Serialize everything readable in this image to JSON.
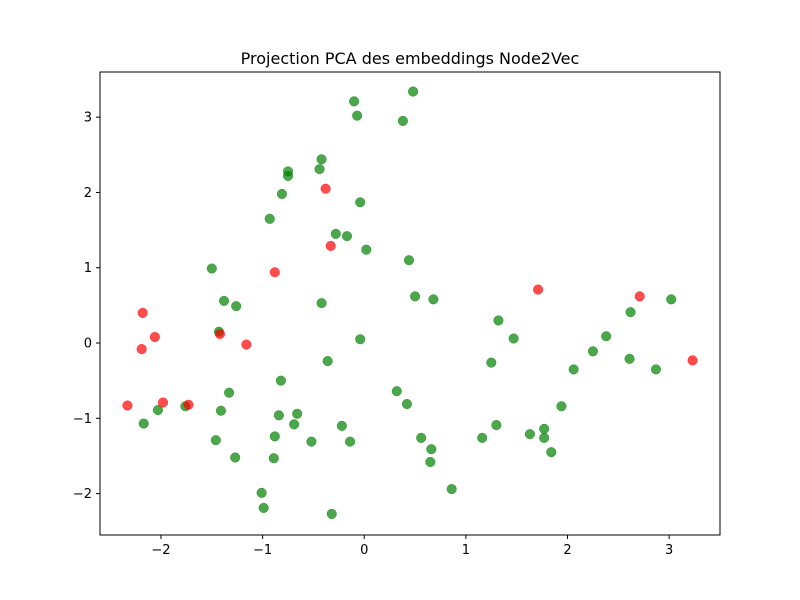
{
  "chart_data": {
    "type": "scatter",
    "title": "Projection PCA des embeddings Node2Vec",
    "xlabel": "",
    "ylabel": "",
    "xlim": [
      -2.6,
      3.5
    ],
    "ylim": [
      -2.55,
      3.6
    ],
    "grid": false,
    "x_ticks": [
      -2,
      -1,
      0,
      1,
      2,
      3
    ],
    "x_tick_labels": [
      "−2",
      "−1",
      "0",
      "1",
      "2",
      "3"
    ],
    "y_ticks": [
      -2,
      -1,
      0,
      1,
      2,
      3
    ],
    "y_tick_labels": [
      "−2",
      "−1",
      "0",
      "1",
      "2",
      "3"
    ],
    "colors": {
      "green": "#008000",
      "red": "#ff0000",
      "axes": "#000000"
    },
    "series": [
      {
        "color": "green",
        "points": [
          [
            0.48,
            3.34
          ],
          [
            -0.1,
            3.21
          ],
          [
            -0.07,
            3.02
          ],
          [
            0.38,
            2.95
          ],
          [
            -0.42,
            2.44
          ],
          [
            -0.44,
            2.31
          ],
          [
            -0.75,
            2.28
          ],
          [
            -0.75,
            2.22
          ],
          [
            -0.81,
            1.98
          ],
          [
            -0.04,
            1.87
          ],
          [
            -0.93,
            1.65
          ],
          [
            -0.28,
            1.45
          ],
          [
            -0.17,
            1.42
          ],
          [
            0.02,
            1.24
          ],
          [
            0.44,
            1.1
          ],
          [
            -1.5,
            0.99
          ],
          [
            0.5,
            0.62
          ],
          [
            0.68,
            0.58
          ],
          [
            -1.38,
            0.56
          ],
          [
            -0.42,
            0.53
          ],
          [
            -1.26,
            0.49
          ],
          [
            -1.43,
            0.15
          ],
          [
            -0.04,
            0.05
          ],
          [
            -0.36,
            -0.24
          ],
          [
            1.32,
            0.3
          ],
          [
            1.47,
            0.06
          ],
          [
            1.25,
            -0.26
          ],
          [
            2.38,
            0.09
          ],
          [
            2.25,
            -0.11
          ],
          [
            2.06,
            -0.35
          ],
          [
            2.62,
            0.41
          ],
          [
            2.61,
            -0.21
          ],
          [
            2.87,
            -0.35
          ],
          [
            3.02,
            0.58
          ],
          [
            -0.82,
            -0.5
          ],
          [
            -1.33,
            -0.66
          ],
          [
            0.32,
            -0.64
          ],
          [
            0.42,
            -0.81
          ],
          [
            1.94,
            -0.84
          ],
          [
            -1.41,
            -0.9
          ],
          [
            -0.84,
            -0.96
          ],
          [
            -0.66,
            -0.94
          ],
          [
            -0.69,
            -1.08
          ],
          [
            -0.22,
            -1.1
          ],
          [
            1.3,
            -1.09
          ],
          [
            -2.03,
            -0.89
          ],
          [
            -1.76,
            -0.84
          ],
          [
            -2.17,
            -1.07
          ],
          [
            1.77,
            -1.14
          ],
          [
            -1.46,
            -1.29
          ],
          [
            -0.88,
            -1.24
          ],
          [
            -0.52,
            -1.31
          ],
          [
            -0.14,
            -1.31
          ],
          [
            0.56,
            -1.26
          ],
          [
            1.16,
            -1.26
          ],
          [
            1.63,
            -1.21
          ],
          [
            1.77,
            -1.26
          ],
          [
            0.66,
            -1.41
          ],
          [
            1.84,
            -1.45
          ],
          [
            -1.27,
            -1.52
          ],
          [
            -0.89,
            -1.53
          ],
          [
            0.65,
            -1.58
          ],
          [
            0.86,
            -1.94
          ],
          [
            -1.01,
            -1.99
          ],
          [
            -0.99,
            -2.19
          ],
          [
            -0.32,
            -2.27
          ]
        ]
      },
      {
        "color": "red",
        "points": [
          [
            -0.38,
            2.05
          ],
          [
            -0.33,
            1.29
          ],
          [
            -0.88,
            0.94
          ],
          [
            1.71,
            0.71
          ],
          [
            2.71,
            0.62
          ],
          [
            -2.18,
            0.4
          ],
          [
            -2.06,
            0.08
          ],
          [
            -1.42,
            0.12
          ],
          [
            -2.19,
            -0.08
          ],
          [
            -1.16,
            -0.02
          ],
          [
            3.23,
            -0.23
          ],
          [
            -2.33,
            -0.83
          ],
          [
            -1.98,
            -0.79
          ],
          [
            -1.73,
            -0.82
          ]
        ]
      }
    ]
  }
}
